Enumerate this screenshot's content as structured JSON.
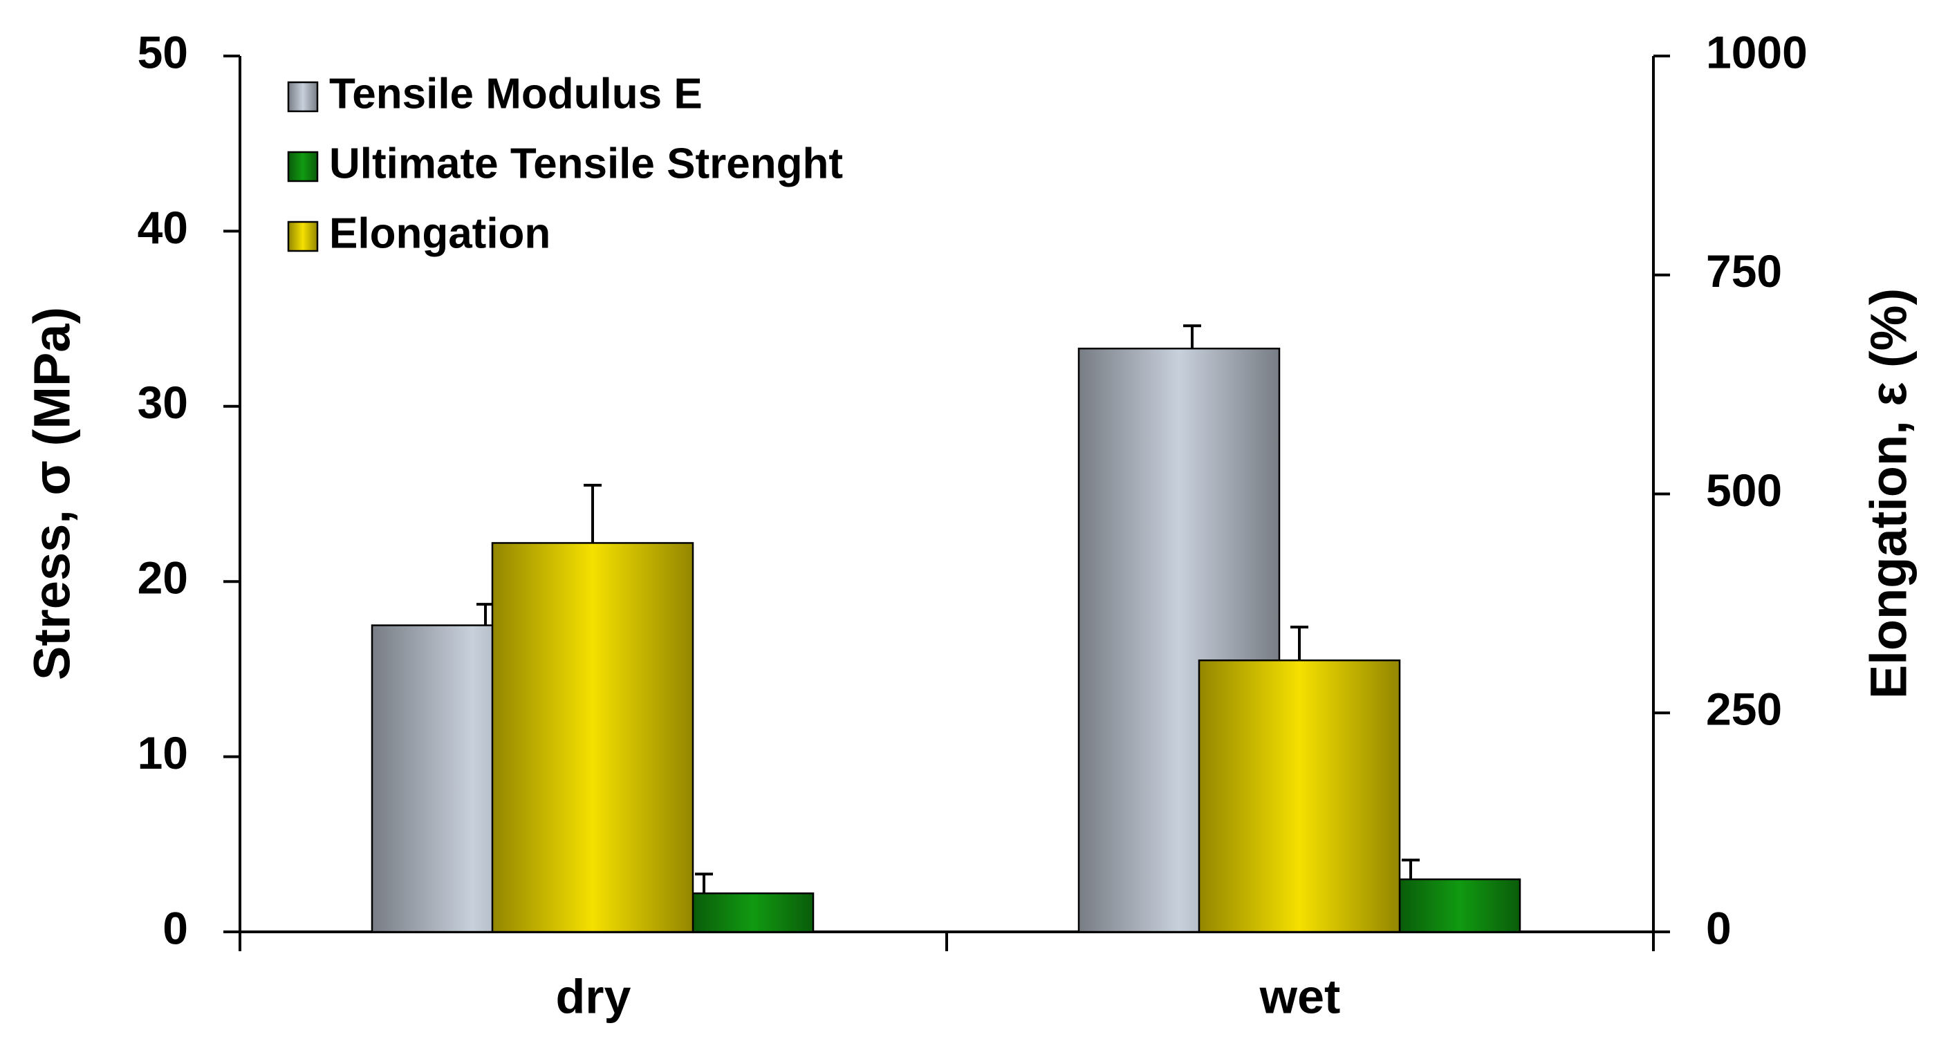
{
  "chart_data": {
    "type": "bar",
    "categories": [
      "dry",
      "wet"
    ],
    "ylabel": "Stress, σ  (MPa)",
    "y2label": "Elongation, ε  (%)",
    "ylim": [
      0,
      50
    ],
    "yticks": [
      0,
      10,
      20,
      30,
      40,
      50
    ],
    "y2lim": [
      0,
      1000
    ],
    "y2ticks": [
      0,
      250,
      500,
      750,
      1000
    ],
    "legend": "upper left",
    "series": [
      {
        "name": "Tensile Modulus E",
        "color": "#c8d0dc",
        "values": [
          17.5,
          33.3
        ],
        "errors": [
          1.2,
          1.3
        ]
      },
      {
        "name": "Ultimate Tensile Strenght",
        "color": "#119a11",
        "values": [
          2.2,
          3.0
        ],
        "errors": [
          1.1,
          1.1
        ]
      },
      {
        "name": "Elongation",
        "color": "#f5e000",
        "values": [
          444,
          310
        ],
        "errors": [
          66,
          38
        ],
        "axis": "y2"
      }
    ]
  }
}
